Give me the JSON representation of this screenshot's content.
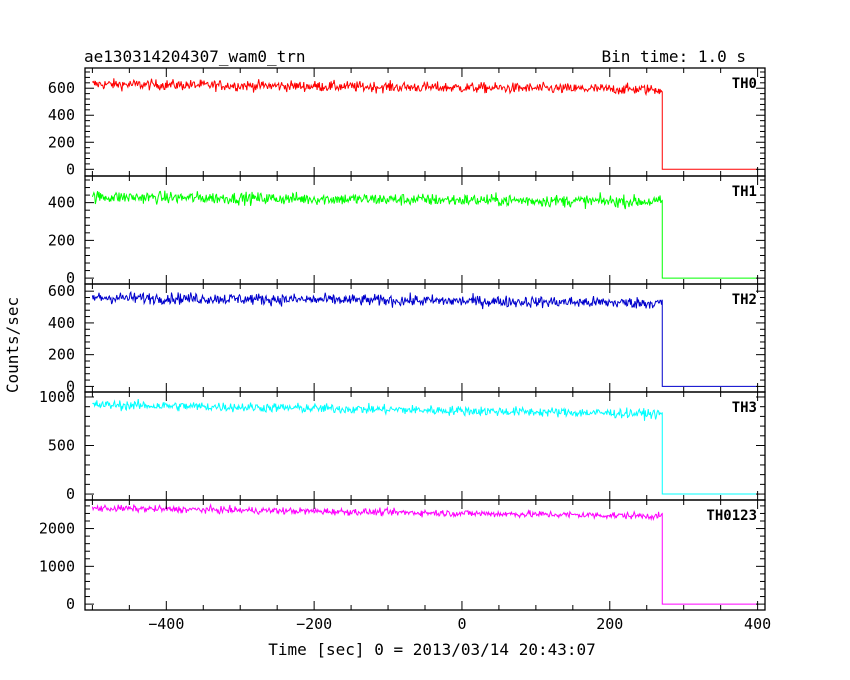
{
  "header": {
    "title": "ae130314204307_wam0_trn",
    "bin_time": "Bin time: 1.0 s"
  },
  "axes": {
    "ylabel": "Counts/sec",
    "xlabel": "Time [sec] 0 = 2013/03/14 20:43:07"
  },
  "chart_data": {
    "type": "line",
    "title": "ae130314204307_wam0_trn",
    "subtitle": "Bin time: 1.0 s",
    "xlabel": "Time [sec] 0 = 2013/03/14 20:43:07",
    "ylabel": "Counts/sec",
    "xlim": [
      -510,
      410
    ],
    "x_ticks": [
      -400,
      -200,
      0,
      200,
      400
    ],
    "data_start": -500,
    "drop_time": 271,
    "data_end": 400,
    "grid": false,
    "panels": [
      {
        "name": "TH0",
        "color": "#ff0000",
        "ylim": [
          -20,
          720
        ],
        "yticks": [
          0,
          200,
          400,
          600
        ],
        "level_start": 630,
        "level_end": 590,
        "noise": 28,
        "after_drop": 0
      },
      {
        "name": "TH1",
        "color": "#00ff00",
        "ylim": [
          -10,
          520
        ],
        "yticks": [
          0,
          200,
          400
        ],
        "level_start": 430,
        "level_end": 405,
        "noise": 23,
        "after_drop": 0
      },
      {
        "name": "TH2",
        "color": "#0000cc",
        "ylim": [
          -10,
          620
        ],
        "yticks": [
          0,
          200,
          400,
          600
        ],
        "level_start": 560,
        "level_end": 525,
        "noise": 26,
        "after_drop": 0
      },
      {
        "name": "TH3",
        "color": "#00ffff",
        "ylim": [
          -20,
          1010
        ],
        "yticks": [
          0,
          500,
          1000
        ],
        "level_start": 920,
        "level_end": 825,
        "noise": 35,
        "after_drop": 0
      },
      {
        "name": "TH0123",
        "color": "#ff00ff",
        "ylim": [
          -50,
          2650
        ],
        "yticks": [
          0,
          1000,
          2000
        ],
        "level_start": 2540,
        "level_end": 2330,
        "noise": 65,
        "after_drop": 0
      }
    ]
  }
}
